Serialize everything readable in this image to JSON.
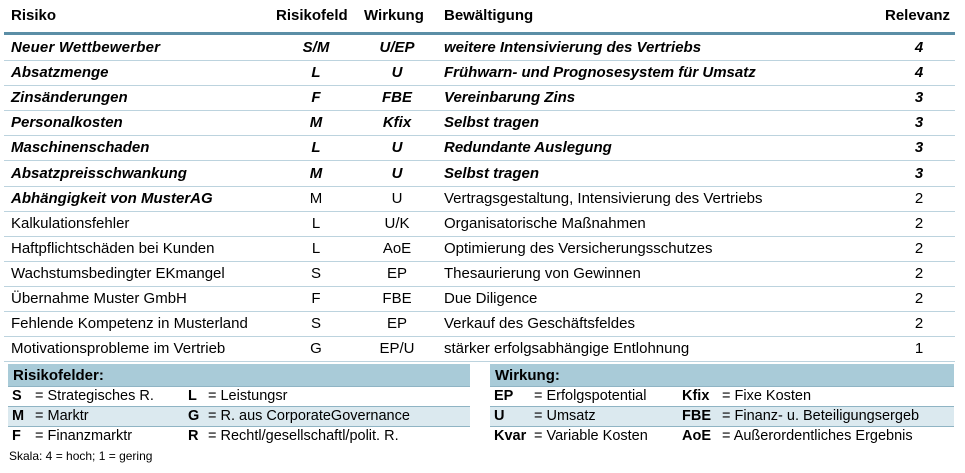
{
  "header": {
    "risk": "Risiko",
    "field": "Risikofeld",
    "effect": "Wirkung",
    "handling": "Bewältigung",
    "relevance": "Relevanz"
  },
  "rows": [
    {
      "risk": "Neuer Wettbewerber",
      "field": "S/M",
      "effect": "U/EP",
      "handling": "weitere Intensivierung des Vertriebs",
      "relevance": "4"
    },
    {
      "risk": "Absatzmenge",
      "field": "L",
      "effect": "U",
      "handling": "Frühwarn- und Prognosesystem für Umsatz",
      "relevance": "4"
    },
    {
      "risk": "Zinsänderungen",
      "field": "F",
      "effect": "FBE",
      "handling": "Vereinbarung Zins",
      "relevance": "3"
    },
    {
      "risk": "Personalkosten",
      "field": "M",
      "effect": "Kfix",
      "handling": "Selbst tragen",
      "relevance": "3"
    },
    {
      "risk": "Maschinenschaden",
      "field": "L",
      "effect": "U",
      "handling": "Redundante Auslegung",
      "relevance": "3"
    },
    {
      "risk": "Absatzpreisschwankung",
      "field": "M",
      "effect": "U",
      "handling": "Selbst tragen",
      "relevance": "3"
    },
    {
      "risk": "Abhängigkeit von MusterAG",
      "field": "M",
      "effect": "U",
      "handling": "Vertragsgestaltung, Intensivierung des Vertriebs",
      "relevance": "2"
    },
    {
      "risk": "Kalkulationsfehler",
      "field": "L",
      "effect": "U/K",
      "handling": "Organisatorische Maßnahmen",
      "relevance": "2"
    },
    {
      "risk": "Haftpflichtschäden bei Kunden",
      "field": "L",
      "effect": "AoE",
      "handling": "Optimierung des Versicherungsschutzes",
      "relevance": "2"
    },
    {
      "risk": "Wachstumsbedingter EKmangel",
      "field": "S",
      "effect": "EP",
      "handling": "Thesaurierung von Gewinnen",
      "relevance": "2"
    },
    {
      "risk": "Übernahme Muster GmbH",
      "field": "F",
      "effect": "FBE",
      "handling": "Due Diligence",
      "relevance": "2"
    },
    {
      "risk": "Fehlende Kompetenz in Musterland",
      "field": "S",
      "effect": "EP",
      "handling": "Verkauf des Geschäftsfeldes",
      "relevance": "2"
    },
    {
      "risk": "Motivationsprobleme im Vertrieb",
      "field": "G",
      "effect": "EP/U",
      "handling": "stärker erfolgsabhängige Entlohnung",
      "relevance": "1"
    }
  ],
  "legend_fields": {
    "title": "Risikofelder:",
    "items": [
      {
        "key": "S",
        "text": "= Strategisches R."
      },
      {
        "key": "L",
        "text": "= Leistungsr"
      },
      {
        "key": "M",
        "text": "= Marktr"
      },
      {
        "key": "G",
        "text": "= R. aus CorporateGovernance"
      },
      {
        "key": "F",
        "text": "= Finanzmarktr"
      },
      {
        "key": "R",
        "text": "= Rechtl/gesellschaftl/polit. R."
      }
    ]
  },
  "legend_effects": {
    "title": "Wirkung:",
    "items": [
      {
        "key": "EP",
        "text": "= Erfolgspotential"
      },
      {
        "key": "Kfix",
        "text": "= Fixe Kosten"
      },
      {
        "key": "U",
        "text": "= Umsatz"
      },
      {
        "key": "FBE",
        "text": "= Finanz- u. Beteiligungsergeb"
      },
      {
        "key": "Kvar",
        "text": "= Variable Kosten"
      },
      {
        "key": "AoE",
        "text": "= Außerordentliches Ergebnis"
      }
    ]
  },
  "scale": "Skala: 4 = hoch; 1 = gering",
  "colors": {
    "accent_rule": "#5b8ea6",
    "legend_bg": "#a9cbd8",
    "row_line": "#bcd3de"
  }
}
